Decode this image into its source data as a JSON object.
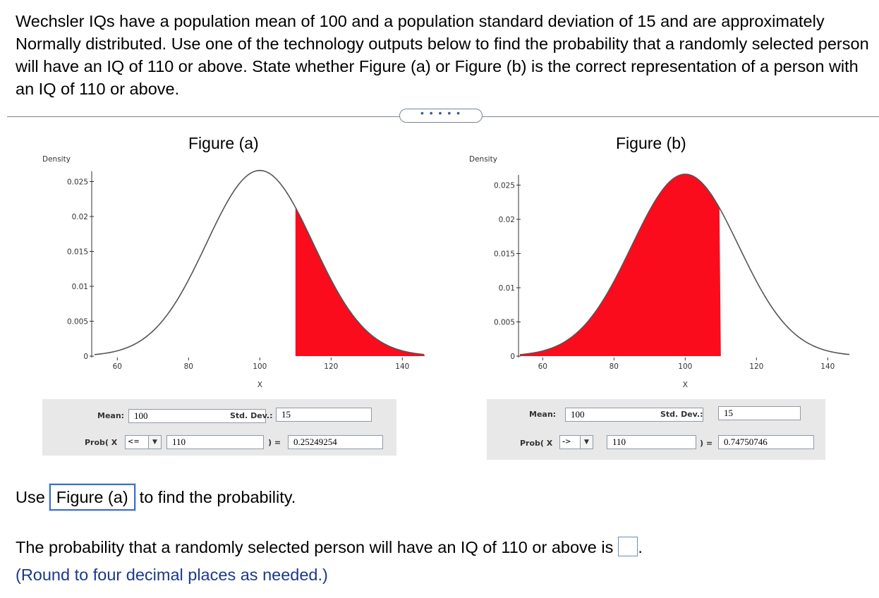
{
  "question": "Wechsler IQs have a population mean of 100 and a population standard deviation of 15 and are approximately Normally distributed. Use one of the technology outputs below to find the probability that a randomly selected person will have an IQ of 110 or above. State whether Figure (a) or Figure (b) is the correct representation of a person with an IQ of 110 or above.",
  "more_button": "• • • • •",
  "figures": [
    {
      "title": "Figure (a)",
      "y_axis_label": "Density",
      "x_axis_label": "X",
      "y_ticks": [
        "0.025",
        "0.02",
        "0.015",
        "0.01",
        "0.005",
        "0"
      ],
      "x_ticks": [
        "60",
        "80",
        "100",
        "120",
        "140"
      ],
      "shade": "right",
      "mean_label": "Mean:",
      "mean_value": "100",
      "sd_label": "Std. Dev.:",
      "sd_value": "15",
      "prob_label": "Prob( X",
      "operator": "<=",
      "x_value": "110",
      "eq_label": ") =",
      "result": "0.25249254"
    },
    {
      "title": "Figure (b)",
      "y_axis_label": "Density",
      "x_axis_label": "X",
      "y_ticks": [
        "0.025",
        "0.02",
        "0.015",
        "0.01",
        "0.005",
        "0"
      ],
      "x_ticks": [
        "60",
        "80",
        "100",
        "120",
        "140"
      ],
      "shade": "left",
      "mean_label": "Mean:",
      "mean_value": "100",
      "sd_label": "Std. Dev.:",
      "sd_value": "15",
      "prob_label": "Prob( X",
      "operator": "->",
      "x_value": "110",
      "eq_label": ") =",
      "result": "0.74750746"
    }
  ],
  "use_prefix": "Use",
  "use_selected": "Figure (a)",
  "use_suffix": "to find the probability.",
  "answer_prefix": "The probability that a randomly selected person will have an IQ of 110 or above is",
  "answer_suffix": ".",
  "hint": "(Round to four decimal places as needed.)",
  "colors": {
    "shade": "#fa0c1c",
    "curve": "#555555",
    "panel": "#e8e8e8",
    "link": "#1a3a8c"
  }
}
